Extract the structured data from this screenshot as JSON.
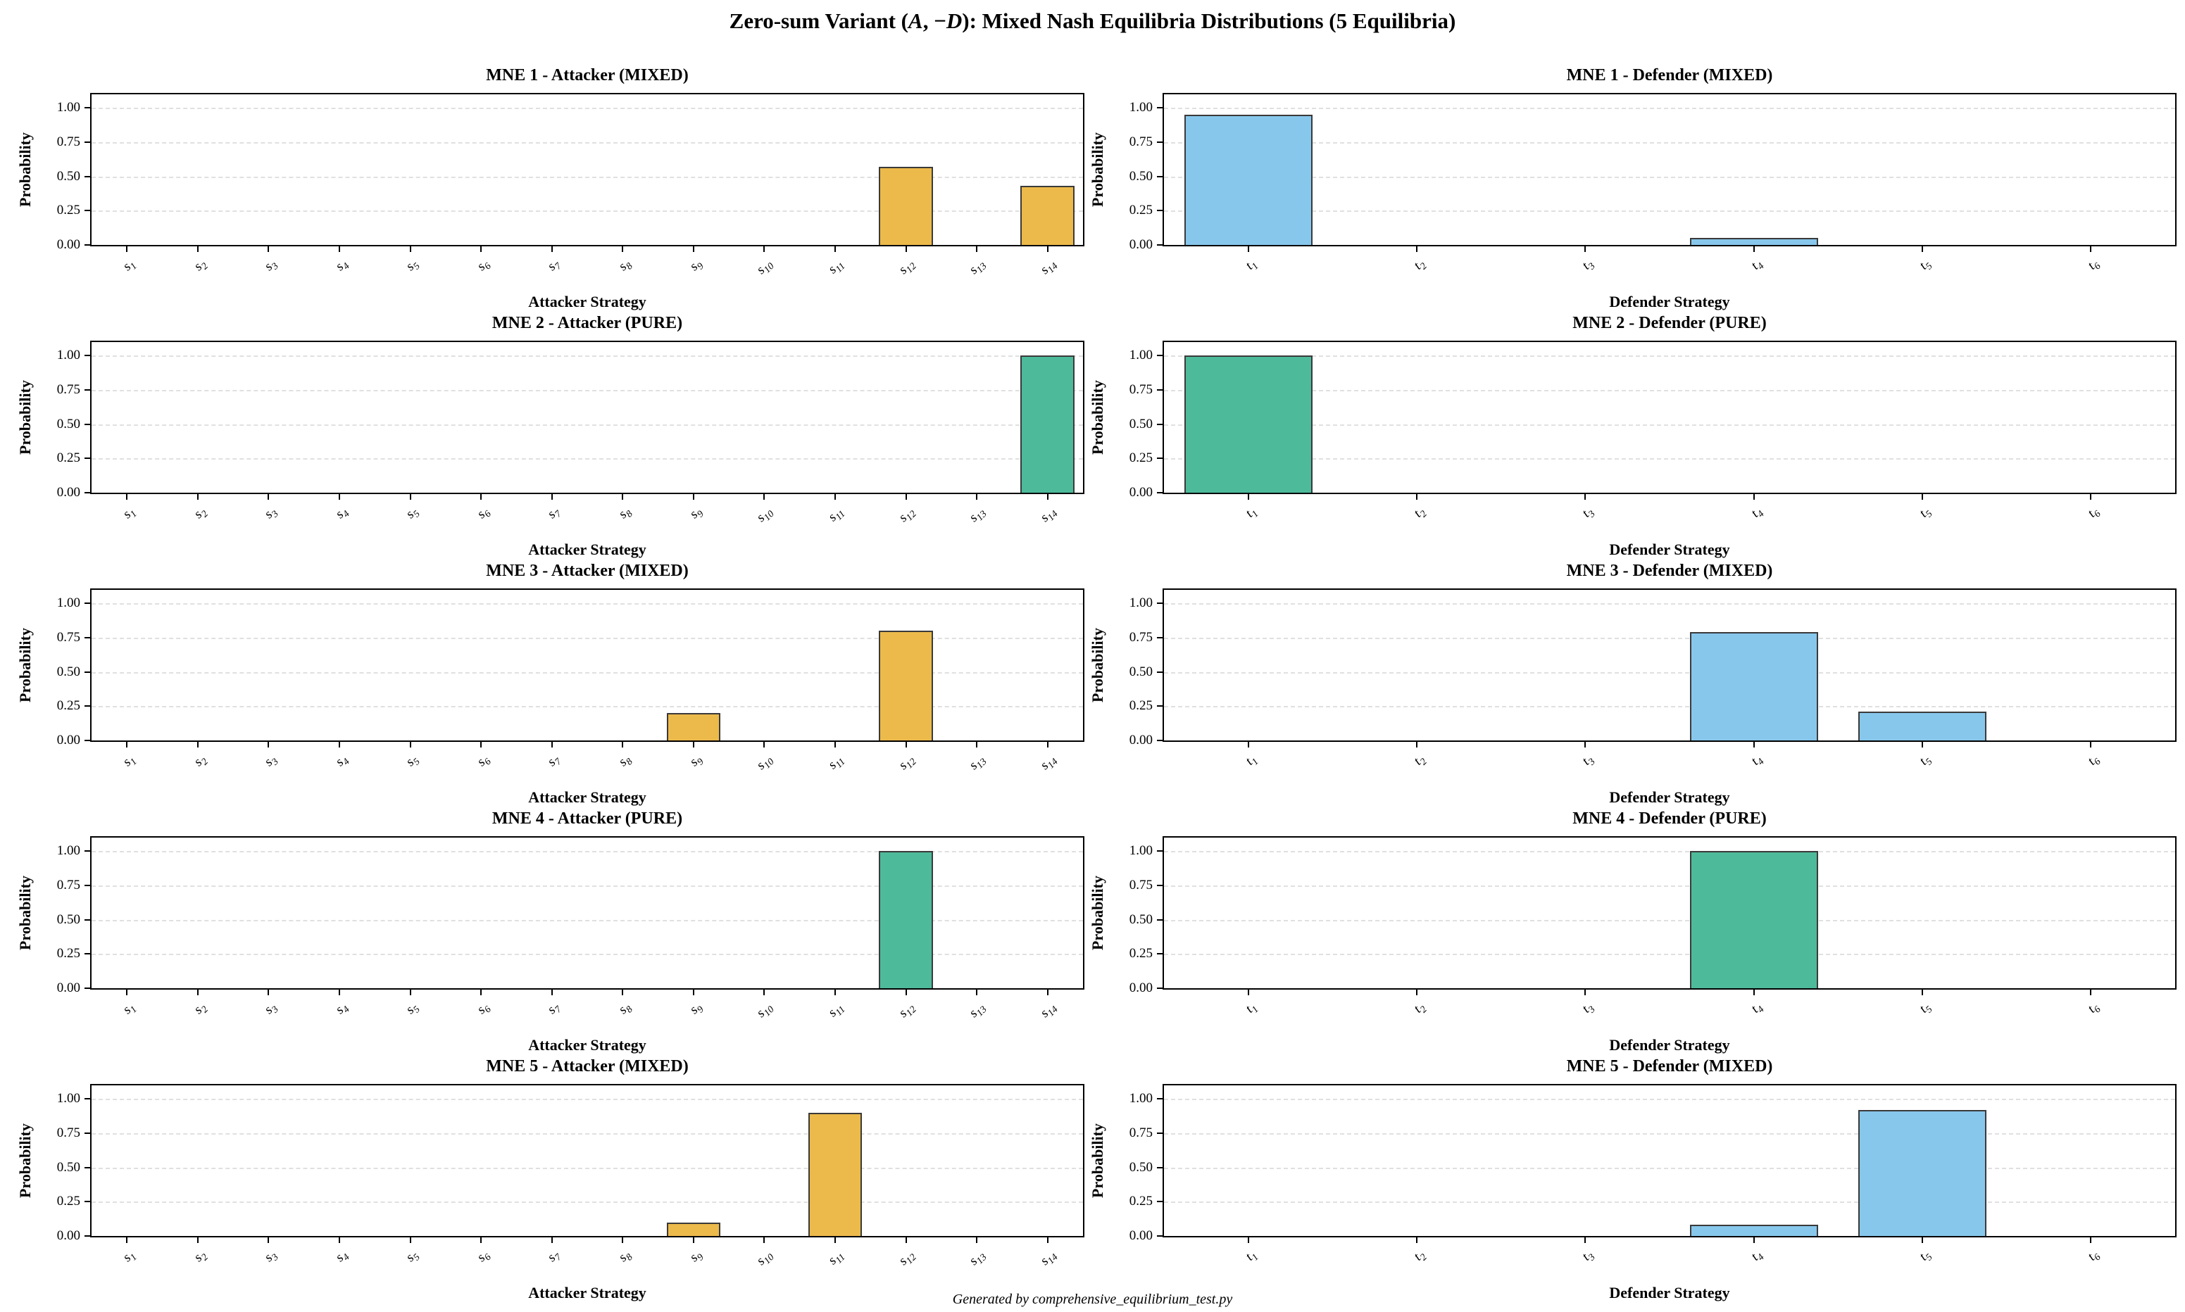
{
  "figure": {
    "suptitle": "Zero-sum Variant (A, −D): Mixed Nash Equilibria Distributions (5 Equilibria)",
    "footer": "Generated by comprehensive_equilibrium_test.py",
    "colors": {
      "attacker_mixed_bar": "#ECBA4B",
      "pure_bar": "#4DBA9A",
      "defender_mixed_bar": "#87C7EC",
      "bar_edge": "#3A3A3A",
      "gridline": "#E0E0E0",
      "axes_border": "#000000"
    }
  },
  "chart_data": [
    {
      "type": "bar",
      "title": "MNE 1 - Attacker (MIXED)",
      "player": "attacker",
      "variant": "MIXED",
      "xlabel": "Attacker Strategy",
      "ylabel": "Probability",
      "categories": [
        "s1",
        "s2",
        "s3",
        "s4",
        "s5",
        "s6",
        "s7",
        "s8",
        "s9",
        "s10",
        "s11",
        "s12",
        "s13",
        "s14"
      ],
      "values": [
        0,
        0,
        0,
        0,
        0,
        0,
        0,
        0,
        0,
        0,
        0,
        0.57,
        0,
        0.43
      ],
      "yticks": [
        0.0,
        0.25,
        0.5,
        0.75,
        1.0
      ],
      "ylim": [
        0,
        1.1
      ],
      "grid": "dashed",
      "bar_color": "#ECBA4B"
    },
    {
      "type": "bar",
      "title": "MNE 1 - Defender (MIXED)",
      "player": "defender",
      "variant": "MIXED",
      "xlabel": "Defender Strategy",
      "ylabel": "Probability",
      "categories": [
        "t1",
        "t2",
        "t3",
        "t4",
        "t5",
        "t6"
      ],
      "values": [
        0.95,
        0,
        0,
        0.05,
        0,
        0
      ],
      "yticks": [
        0.0,
        0.25,
        0.5,
        0.75,
        1.0
      ],
      "ylim": [
        0,
        1.1
      ],
      "grid": "dashed",
      "bar_color": "#87C7EC"
    },
    {
      "type": "bar",
      "title": "MNE 2 - Attacker (PURE)",
      "player": "attacker",
      "variant": "PURE",
      "xlabel": "Attacker Strategy",
      "ylabel": "Probability",
      "categories": [
        "s1",
        "s2",
        "s3",
        "s4",
        "s5",
        "s6",
        "s7",
        "s8",
        "s9",
        "s10",
        "s11",
        "s12",
        "s13",
        "s14"
      ],
      "values": [
        0,
        0,
        0,
        0,
        0,
        0,
        0,
        0,
        0,
        0,
        0,
        0,
        0,
        1.0
      ],
      "yticks": [
        0.0,
        0.25,
        0.5,
        0.75,
        1.0
      ],
      "ylim": [
        0,
        1.1
      ],
      "grid": "dashed",
      "bar_color": "#4DBA9A"
    },
    {
      "type": "bar",
      "title": "MNE 2 - Defender (PURE)",
      "player": "defender",
      "variant": "PURE",
      "xlabel": "Defender Strategy",
      "ylabel": "Probability",
      "categories": [
        "t1",
        "t2",
        "t3",
        "t4",
        "t5",
        "t6"
      ],
      "values": [
        1.0,
        0,
        0,
        0,
        0,
        0
      ],
      "yticks": [
        0.0,
        0.25,
        0.5,
        0.75,
        1.0
      ],
      "ylim": [
        0,
        1.1
      ],
      "grid": "dashed",
      "bar_color": "#4DBA9A"
    },
    {
      "type": "bar",
      "title": "MNE 3 - Attacker (MIXED)",
      "player": "attacker",
      "variant": "MIXED",
      "xlabel": "Attacker Strategy",
      "ylabel": "Probability",
      "categories": [
        "s1",
        "s2",
        "s3",
        "s4",
        "s5",
        "s6",
        "s7",
        "s8",
        "s9",
        "s10",
        "s11",
        "s12",
        "s13",
        "s14"
      ],
      "values": [
        0,
        0,
        0,
        0,
        0,
        0,
        0,
        0,
        0.2,
        0,
        0,
        0.8,
        0,
        0
      ],
      "yticks": [
        0.0,
        0.25,
        0.5,
        0.75,
        1.0
      ],
      "ylim": [
        0,
        1.1
      ],
      "grid": "dashed",
      "bar_color": "#ECBA4B"
    },
    {
      "type": "bar",
      "title": "MNE 3 - Defender (MIXED)",
      "player": "defender",
      "variant": "MIXED",
      "xlabel": "Defender Strategy",
      "ylabel": "Probability",
      "categories": [
        "t1",
        "t2",
        "t3",
        "t4",
        "t5",
        "t6"
      ],
      "values": [
        0,
        0,
        0,
        0.79,
        0.21,
        0
      ],
      "yticks": [
        0.0,
        0.25,
        0.5,
        0.75,
        1.0
      ],
      "ylim": [
        0,
        1.1
      ],
      "grid": "dashed",
      "bar_color": "#87C7EC"
    },
    {
      "type": "bar",
      "title": "MNE 4 - Attacker (PURE)",
      "player": "attacker",
      "variant": "PURE",
      "xlabel": "Attacker Strategy",
      "ylabel": "Probability",
      "categories": [
        "s1",
        "s2",
        "s3",
        "s4",
        "s5",
        "s6",
        "s7",
        "s8",
        "s9",
        "s10",
        "s11",
        "s12",
        "s13",
        "s14"
      ],
      "values": [
        0,
        0,
        0,
        0,
        0,
        0,
        0,
        0,
        0,
        0,
        0,
        1.0,
        0,
        0
      ],
      "yticks": [
        0.0,
        0.25,
        0.5,
        0.75,
        1.0
      ],
      "ylim": [
        0,
        1.1
      ],
      "grid": "dashed",
      "bar_color": "#4DBA9A"
    },
    {
      "type": "bar",
      "title": "MNE 4 - Defender (PURE)",
      "player": "defender",
      "variant": "PURE",
      "xlabel": "Defender Strategy",
      "ylabel": "Probability",
      "categories": [
        "t1",
        "t2",
        "t3",
        "t4",
        "t5",
        "t6"
      ],
      "values": [
        0,
        0,
        0,
        1.0,
        0,
        0
      ],
      "yticks": [
        0.0,
        0.25,
        0.5,
        0.75,
        1.0
      ],
      "ylim": [
        0,
        1.1
      ],
      "grid": "dashed",
      "bar_color": "#4DBA9A"
    },
    {
      "type": "bar",
      "title": "MNE 5 - Attacker (MIXED)",
      "player": "attacker",
      "variant": "MIXED",
      "xlabel": "Attacker Strategy",
      "ylabel": "Probability",
      "categories": [
        "s1",
        "s2",
        "s3",
        "s4",
        "s5",
        "s6",
        "s7",
        "s8",
        "s9",
        "s10",
        "s11",
        "s12",
        "s13",
        "s14"
      ],
      "values": [
        0,
        0,
        0,
        0,
        0,
        0,
        0,
        0,
        0.1,
        0,
        0.9,
        0,
        0,
        0
      ],
      "yticks": [
        0.0,
        0.25,
        0.5,
        0.75,
        1.0
      ],
      "ylim": [
        0,
        1.1
      ],
      "grid": "dashed",
      "bar_color": "#ECBA4B"
    },
    {
      "type": "bar",
      "title": "MNE 5 - Defender (MIXED)",
      "player": "defender",
      "variant": "MIXED",
      "xlabel": "Defender Strategy",
      "ylabel": "Probability",
      "categories": [
        "t1",
        "t2",
        "t3",
        "t4",
        "t5",
        "t6"
      ],
      "values": [
        0,
        0,
        0,
        0.08,
        0.92,
        0
      ],
      "yticks": [
        0.0,
        0.25,
        0.5,
        0.75,
        1.0
      ],
      "ylim": [
        0,
        1.1
      ],
      "grid": "dashed",
      "bar_color": "#87C7EC"
    }
  ]
}
